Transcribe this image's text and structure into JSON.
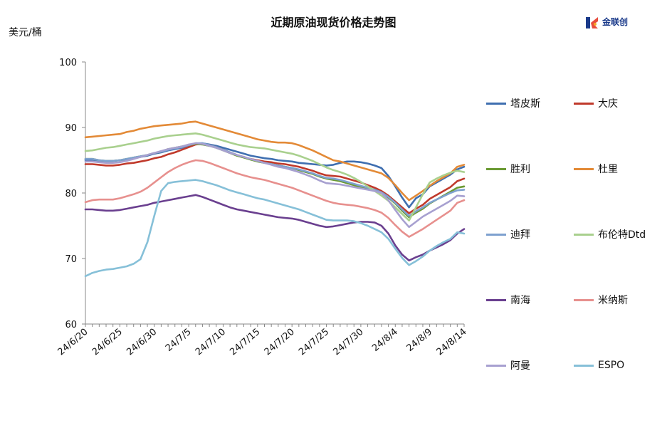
{
  "title": "近期原油现货价格走势图",
  "y_unit": "美元/桶",
  "logo": {
    "text": "金联创",
    "icon": "jinlianchuang-logo-icon"
  },
  "chart_data": {
    "type": "line",
    "ylim": [
      60,
      100
    ],
    "yticks": [
      60,
      70,
      80,
      90,
      100
    ],
    "x_tick_labels": [
      "24/6/20",
      "24/6/25",
      "24/6/30",
      "24/7/5",
      "24/7/10",
      "24/7/15",
      "24/7/20",
      "24/7/25",
      "24/7/30",
      "24/8/4",
      "24/8/9",
      "24/8/14"
    ],
    "x_tick_index": [
      0,
      5,
      10,
      15,
      20,
      25,
      30,
      35,
      40,
      45,
      50,
      55
    ],
    "x_count": 56,
    "grid": false,
    "legend_position": "right",
    "series": [
      {
        "name": "塔皮斯",
        "color": "#3f6fb0",
        "values": [
          85.0,
          85.1,
          84.8,
          84.8,
          84.9,
          85.0,
          85.1,
          85.3,
          85.5,
          85.7,
          86.0,
          86.2,
          86.5,
          86.7,
          86.9,
          87.2,
          87.5,
          87.6,
          87.4,
          87.2,
          86.9,
          86.6,
          86.3,
          86.0,
          85.7,
          85.5,
          85.3,
          85.2,
          85.0,
          84.9,
          84.8,
          84.6,
          84.5,
          84.4,
          84.3,
          84.2,
          84.3,
          84.6,
          84.8,
          84.8,
          84.7,
          84.5,
          84.2,
          83.8,
          82.6,
          81.0,
          79.3,
          77.8,
          79.2,
          79.8,
          81.0,
          81.6,
          82.2,
          82.8,
          83.6,
          84.0
        ]
      },
      {
        "name": "大庆",
        "color": "#c0392b",
        "values": [
          84.4,
          84.4,
          84.3,
          84.2,
          84.2,
          84.3,
          84.5,
          84.6,
          84.8,
          85.0,
          85.3,
          85.5,
          85.9,
          86.2,
          86.6,
          87.0,
          87.4,
          87.5,
          87.3,
          87.0,
          86.6,
          86.2,
          85.8,
          85.5,
          85.2,
          85.0,
          84.8,
          84.7,
          84.5,
          84.4,
          84.2,
          84.0,
          83.7,
          83.4,
          83.0,
          82.7,
          82.6,
          82.5,
          82.2,
          81.9,
          81.6,
          81.2,
          80.8,
          80.3,
          79.6,
          78.7,
          77.8,
          76.9,
          77.6,
          78.2,
          79.1,
          79.7,
          80.3,
          80.9,
          81.8,
          82.2
        ]
      },
      {
        "name": "胜利",
        "color": "#6b9a34",
        "values": [
          85.2,
          85.2,
          85.0,
          84.9,
          84.9,
          85.0,
          85.2,
          85.4,
          85.6,
          85.8,
          86.1,
          86.3,
          86.7,
          86.9,
          87.1,
          87.3,
          87.5,
          87.4,
          87.2,
          86.9,
          86.5,
          86.1,
          85.7,
          85.4,
          85.1,
          84.8,
          84.6,
          84.4,
          84.2,
          84.0,
          83.8,
          83.5,
          83.2,
          82.9,
          82.5,
          82.2,
          82.0,
          81.8,
          81.5,
          81.2,
          80.9,
          80.6,
          80.3,
          80.0,
          79.3,
          78.4,
          77.3,
          76.3,
          77.0,
          77.6,
          78.4,
          79.0,
          79.6,
          80.2,
          80.8,
          81.0
        ]
      },
      {
        "name": "杜里",
        "color": "#e38a37",
        "values": [
          88.5,
          88.6,
          88.7,
          88.8,
          88.9,
          89.0,
          89.3,
          89.5,
          89.8,
          90.0,
          90.2,
          90.3,
          90.4,
          90.5,
          90.6,
          90.8,
          90.9,
          90.6,
          90.3,
          90.0,
          89.7,
          89.4,
          89.1,
          88.8,
          88.5,
          88.2,
          88.0,
          87.8,
          87.7,
          87.7,
          87.6,
          87.3,
          86.9,
          86.5,
          86.0,
          85.5,
          85.0,
          84.8,
          84.5,
          84.2,
          83.9,
          83.6,
          83.3,
          83.0,
          82.3,
          81.2,
          80.0,
          78.9,
          79.6,
          80.3,
          81.1,
          81.8,
          82.4,
          83.0,
          84.0,
          84.3
        ]
      },
      {
        "name": "迪拜",
        "color": "#7ea1cf",
        "values": [
          85.2,
          85.2,
          85.0,
          84.9,
          84.9,
          85.0,
          85.2,
          85.4,
          85.6,
          85.8,
          86.1,
          86.3,
          86.6,
          86.8,
          87.0,
          87.3,
          87.6,
          87.6,
          87.3,
          87.0,
          86.6,
          86.2,
          85.8,
          85.5,
          85.2,
          84.9,
          84.6,
          84.4,
          84.2,
          84.0,
          83.8,
          83.6,
          83.3,
          83.0,
          82.6,
          82.3,
          82.2,
          82.0,
          81.7,
          81.4,
          81.1,
          80.8,
          80.5,
          80.1,
          79.4,
          78.5,
          77.5,
          76.5,
          77.2,
          77.8,
          78.5,
          79.0,
          79.5,
          80.0,
          80.4,
          80.5
        ]
      },
      {
        "name": "布伦特Dtd",
        "color": "#a9d08e",
        "values": [
          86.4,
          86.5,
          86.7,
          86.9,
          87.0,
          87.2,
          87.4,
          87.6,
          87.8,
          88.0,
          88.3,
          88.5,
          88.7,
          88.8,
          88.9,
          89.0,
          89.1,
          88.9,
          88.6,
          88.3,
          88.0,
          87.7,
          87.4,
          87.2,
          87.0,
          86.9,
          86.8,
          86.6,
          86.4,
          86.2,
          86.0,
          85.7,
          85.3,
          84.9,
          84.4,
          83.9,
          83.5,
          83.2,
          82.8,
          82.3,
          81.7,
          81.0,
          80.3,
          79.6,
          78.8,
          77.8,
          76.8,
          75.8,
          77.8,
          79.8,
          81.6,
          82.2,
          82.7,
          83.1,
          83.4,
          83.2
        ]
      },
      {
        "name": "南海",
        "color": "#6a3f8f",
        "values": [
          77.5,
          77.5,
          77.4,
          77.3,
          77.3,
          77.4,
          77.6,
          77.8,
          78.0,
          78.2,
          78.5,
          78.7,
          78.9,
          79.1,
          79.3,
          79.5,
          79.7,
          79.4,
          79.0,
          78.6,
          78.2,
          77.8,
          77.5,
          77.3,
          77.1,
          76.9,
          76.7,
          76.5,
          76.3,
          76.2,
          76.1,
          75.9,
          75.6,
          75.3,
          75.0,
          74.8,
          74.9,
          75.1,
          75.3,
          75.5,
          75.6,
          75.6,
          75.5,
          75.0,
          73.8,
          72.0,
          70.6,
          69.7,
          70.2,
          70.6,
          71.2,
          71.7,
          72.2,
          72.8,
          73.8,
          74.5
        ]
      },
      {
        "name": "米纳斯",
        "color": "#e7908e",
        "values": [
          78.6,
          78.9,
          79.0,
          79.0,
          79.0,
          79.2,
          79.5,
          79.8,
          80.2,
          80.8,
          81.6,
          82.4,
          83.2,
          83.8,
          84.3,
          84.7,
          85.0,
          84.9,
          84.6,
          84.2,
          83.8,
          83.4,
          83.0,
          82.7,
          82.4,
          82.2,
          82.0,
          81.7,
          81.4,
          81.1,
          80.8,
          80.4,
          80.0,
          79.6,
          79.2,
          78.8,
          78.5,
          78.3,
          78.2,
          78.1,
          77.9,
          77.7,
          77.4,
          77.0,
          76.2,
          75.1,
          74.1,
          73.3,
          73.9,
          74.5,
          75.2,
          75.9,
          76.6,
          77.3,
          78.5,
          78.9
        ]
      },
      {
        "name": "阿曼",
        "color": "#a7a0d0",
        "values": [
          84.8,
          84.8,
          84.7,
          84.6,
          84.6,
          84.7,
          84.9,
          85.2,
          85.5,
          85.8,
          86.1,
          86.4,
          86.7,
          86.9,
          87.1,
          87.4,
          87.6,
          87.5,
          87.2,
          86.9,
          86.5,
          86.1,
          85.8,
          85.5,
          85.2,
          84.9,
          84.6,
          84.3,
          84.0,
          83.8,
          83.5,
          83.2,
          82.8,
          82.4,
          81.9,
          81.5,
          81.4,
          81.3,
          81.1,
          80.9,
          80.7,
          80.5,
          80.3,
          80.0,
          78.9,
          77.4,
          76.0,
          74.8,
          75.6,
          76.4,
          77.0,
          77.6,
          78.2,
          78.8,
          79.6,
          79.5
        ]
      },
      {
        "name": "ESPO",
        "color": "#86c0d8",
        "values": [
          67.3,
          67.8,
          68.1,
          68.3,
          68.4,
          68.6,
          68.8,
          69.2,
          69.9,
          72.5,
          76.5,
          80.3,
          81.5,
          81.7,
          81.8,
          81.9,
          82.0,
          81.8,
          81.5,
          81.2,
          80.8,
          80.4,
          80.1,
          79.8,
          79.5,
          79.2,
          79.0,
          78.7,
          78.4,
          78.1,
          77.8,
          77.5,
          77.1,
          76.7,
          76.3,
          75.9,
          75.8,
          75.8,
          75.8,
          75.7,
          75.4,
          75.0,
          74.5,
          74.0,
          73.0,
          71.5,
          70.1,
          69.0,
          69.6,
          70.3,
          71.2,
          71.9,
          72.5,
          73.0,
          74.0,
          73.8
        ]
      }
    ]
  }
}
